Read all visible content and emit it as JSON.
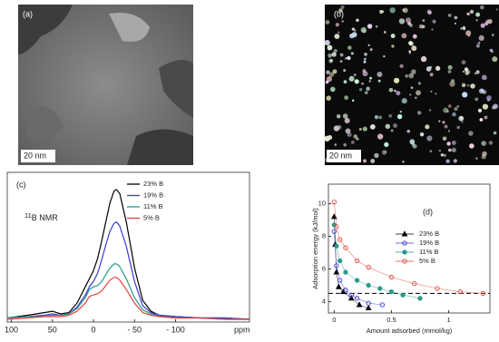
{
  "panels": {
    "a": {
      "label": "(a)",
      "scale_bar": "20 nm"
    },
    "b": {
      "label": "(b)",
      "scale_bar": "20 nm"
    }
  },
  "chart_data": [
    {
      "type": "line",
      "panel_label": "(c)",
      "annotation_sup": "11",
      "annotation": "B NMR",
      "xlabel": "ppm",
      "xlim": [
        105,
        -190
      ],
      "ylim": [
        0,
        100
      ],
      "xticks": [
        100,
        50,
        0,
        {
          "value": -50,
          "label": "- 50"
        },
        {
          "value": -100,
          "label": "- 100"
        }
      ],
      "x": [
        105,
        80,
        60,
        50,
        40,
        30,
        20,
        10,
        5,
        0,
        -5,
        -10,
        -15,
        -20,
        -25,
        -28,
        -32,
        -40,
        -50,
        -60,
        -70,
        -80,
        -100,
        -130,
        -160,
        -190
      ],
      "series": [
        {
          "name": "23% B",
          "color": "#000000",
          "values": [
            1,
            3,
            5,
            6,
            4,
            5,
            12,
            24,
            30,
            36,
            45,
            58,
            72,
            86,
            95,
            96,
            93,
            72,
            38,
            14,
            6,
            3,
            2,
            1,
            1,
            0
          ]
        },
        {
          "name": "19% B",
          "color": "#3a3ad6",
          "values": [
            1,
            2,
            3,
            4,
            3,
            4,
            9,
            18,
            24,
            28,
            34,
            44,
            55,
            65,
            71,
            72,
            69,
            54,
            28,
            10,
            5,
            3,
            2,
            1,
            1,
            0
          ]
        },
        {
          "name": "11% B",
          "color": "#2a9a8a",
          "values": [
            1,
            2,
            2,
            3,
            3,
            4,
            8,
            16,
            22,
            24,
            25,
            28,
            33,
            38,
            41,
            41,
            39,
            30,
            16,
            7,
            4,
            2,
            1,
            1,
            0,
            0
          ]
        },
        {
          "name": "5% B",
          "color": "#e0443a",
          "values": [
            0,
            1,
            2,
            2,
            2,
            3,
            6,
            12,
            17,
            18,
            19,
            21,
            25,
            29,
            31,
            31,
            29,
            22,
            12,
            5,
            3,
            2,
            1,
            1,
            0,
            0
          ]
        }
      ]
    },
    {
      "type": "scatter",
      "panel_label": "(d)",
      "xlabel": "Amount adsorbed (mmol/kg)",
      "ylabel": "Adsorption energy (kJ/mol)",
      "xlim": [
        -0.05,
        1.36
      ],
      "ylim": [
        3.3,
        11.2
      ],
      "xticks": [
        0,
        0.5,
        1
      ],
      "yticks": [
        4,
        6,
        8,
        10
      ],
      "reference_y": 4.5,
      "series": [
        {
          "name": "23% B",
          "color": "#000000",
          "marker": "triangle",
          "filled": true,
          "x": [
            0.0,
            0.01,
            0.02,
            0.04,
            0.08,
            0.15,
            0.22,
            0.3
          ],
          "values": [
            9.2,
            7.5,
            5.8,
            4.9,
            4.6,
            4.2,
            3.8,
            3.6
          ]
        },
        {
          "name": "19% B",
          "color": "#3a3ad6",
          "marker": "circle",
          "filled": false,
          "x": [
            0.0,
            0.02,
            0.05,
            0.1,
            0.15,
            0.2,
            0.3,
            0.42
          ],
          "values": [
            8.3,
            6.2,
            5.3,
            4.7,
            4.4,
            4.2,
            3.9,
            3.8
          ]
        },
        {
          "name": "11% B",
          "color": "#2a9a8a",
          "marker": "circle",
          "filled": true,
          "x": [
            0.0,
            0.02,
            0.05,
            0.1,
            0.2,
            0.3,
            0.4,
            0.5,
            0.6,
            0.75
          ],
          "values": [
            8.7,
            7.4,
            6.5,
            5.8,
            5.3,
            5.0,
            4.8,
            4.6,
            4.4,
            4.2
          ]
        },
        {
          "name": "5% B",
          "color": "#e0443a",
          "marker": "circle",
          "filled": false,
          "x": [
            0.0,
            0.02,
            0.05,
            0.1,
            0.2,
            0.3,
            0.5,
            0.7,
            0.9,
            1.1,
            1.3
          ],
          "values": [
            10.1,
            8.6,
            7.8,
            7.3,
            6.5,
            6.1,
            5.5,
            5.1,
            4.8,
            4.6,
            4.5
          ]
        }
      ]
    }
  ]
}
